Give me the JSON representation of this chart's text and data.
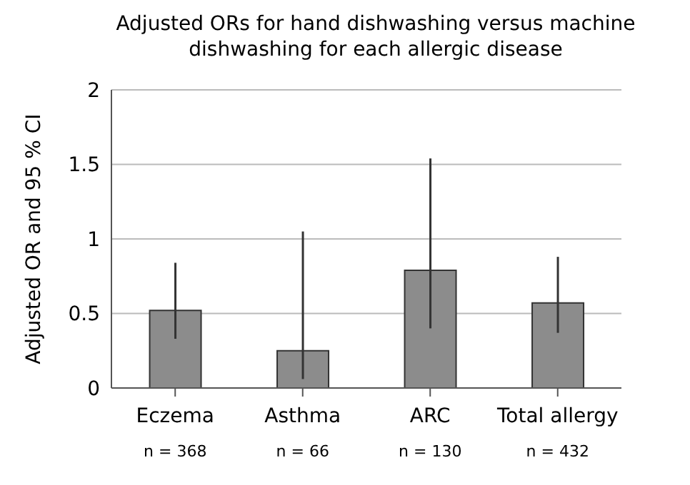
{
  "chart_data": {
    "type": "bar",
    "title": "Adjusted ORs for hand dishwashing versus machine dishwashing for each allergic disease",
    "ylabel": "Adjusted OR and 95 % CI",
    "categories": [
      "Eczema",
      "Asthma",
      "ARC",
      "Total allergy"
    ],
    "values": [
      0.52,
      0.25,
      0.79,
      0.57
    ],
    "errors": [
      [
        0.33,
        0.84
      ],
      [
        0.06,
        1.05
      ],
      [
        0.4,
        1.54
      ],
      [
        0.37,
        0.88
      ]
    ],
    "color": "#8c8c8c",
    "annotations": [
      "n = 368",
      "n = 66",
      "n = 130",
      "n = 432"
    ],
    "ylim": [
      0,
      2
    ],
    "yticks": [
      0,
      0.5,
      1,
      1.5,
      2
    ],
    "grid": "y",
    "legend": false
  }
}
